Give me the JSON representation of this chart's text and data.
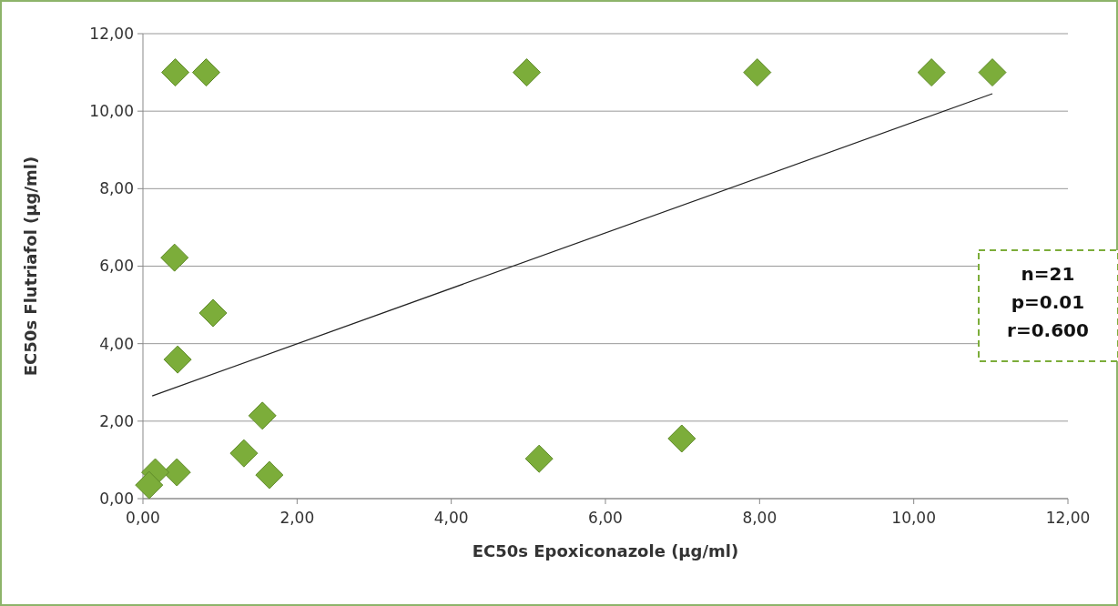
{
  "chart_data": {
    "type": "scatter",
    "xlabel": "EC50s Epoxiconazole (µg/ml)",
    "ylabel": "EC50s Flutriafol (µg/ml)",
    "xlim": [
      0,
      12
    ],
    "ylim": [
      0,
      12
    ],
    "xticks": [
      {
        "value": 0,
        "label": "0,00"
      },
      {
        "value": 2,
        "label": "2,00"
      },
      {
        "value": 4,
        "label": "4,00"
      },
      {
        "value": 6,
        "label": "6,00"
      },
      {
        "value": 8,
        "label": "8,00"
      },
      {
        "value": 10,
        "label": "10,00"
      },
      {
        "value": 12,
        "label": "12,00"
      }
    ],
    "yticks": [
      {
        "value": 0,
        "label": "0,00"
      },
      {
        "value": 2,
        "label": "2,00"
      },
      {
        "value": 4,
        "label": "4,00"
      },
      {
        "value": 6,
        "label": "6,00"
      },
      {
        "value": 8,
        "label": "8,00"
      },
      {
        "value": 10,
        "label": "10,00"
      },
      {
        "value": 12,
        "label": "12,00"
      }
    ],
    "grid": "y",
    "series": [
      {
        "marker": "diamond",
        "color": "#7cad3a",
        "x": [
          0.42,
          0.82,
          4.98,
          7.97,
          10.23,
          11.02,
          0.41,
          0.91,
          0.45,
          1.55,
          1.31,
          1.64,
          5.14,
          6.99,
          0.44,
          0.16,
          0.08
        ],
        "values": [
          11,
          11,
          11,
          11,
          11,
          11,
          6.22,
          4.79,
          3.59,
          2.14,
          1.17,
          0.61,
          1.03,
          1.55,
          0.68,
          0.68,
          0.35
        ]
      },
      {
        "type": "line",
        "color": "#222222",
        "x": [
          0.12,
          11.02
        ],
        "values": [
          2.65,
          10.45
        ]
      }
    ],
    "annotations": [
      "n=21",
      "p=0.01",
      "r=0.600"
    ]
  }
}
